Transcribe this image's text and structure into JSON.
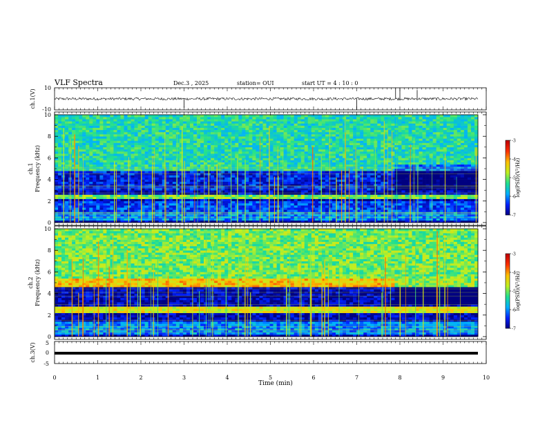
{
  "header": {
    "title": "VLF Spectra",
    "date": "Dec.3  , 2025",
    "station": "station= OUI",
    "start": "start  UT =  4 : 10 : 0"
  },
  "colorbar": {
    "label": "log(PSD)(V²/Hz)",
    "ticks": [
      "-3",
      "-4",
      "-5",
      "-6",
      "-7"
    ],
    "range": [
      -7,
      -3
    ],
    "colors": [
      "#000080",
      "#0020ff",
      "#00b0ff",
      "#20e090",
      "#c0f020",
      "#ffc000",
      "#ff3000",
      "#c00000",
      "#ffffff"
    ]
  },
  "chart_data": [
    {
      "type": "line",
      "title": "ch.1(V)",
      "ylabel": "ch.1(V)",
      "ylim": [
        -10,
        10
      ],
      "yticks": [
        "10",
        "-10"
      ],
      "xlim": [
        0,
        10
      ],
      "baseline": 0,
      "spikes": [
        {
          "x": 3.0,
          "y": -8
        },
        {
          "x": 7.0,
          "y": -10
        },
        {
          "x": 7.9,
          "y": 10
        },
        {
          "x": 8.0,
          "y": 10
        },
        {
          "x": 8.4,
          "y": 8
        }
      ]
    },
    {
      "type": "heatmap",
      "title": "ch.1 Frequency (kHz)",
      "ylabel_top": "ch.1",
      "ylabel": "Frequency  (kHz)",
      "ylim": [
        0,
        10
      ],
      "yticks": [
        "0",
        "2",
        "4",
        "6",
        "8",
        "10"
      ],
      "xlim": [
        0,
        10
      ],
      "bands_khz": [
        {
          "range": [
            0.2,
            1.0
          ],
          "level": -6.0
        },
        {
          "range": [
            1.0,
            2.0
          ],
          "level": -6.3
        },
        {
          "range": [
            2.2,
            2.6
          ],
          "level": -5.0
        },
        {
          "range": [
            3.0,
            4.8
          ],
          "level": -6.5
        },
        {
          "range": [
            4.8,
            10.0
          ],
          "level": -5.4
        }
      ],
      "transition_min": 7.8
    },
    {
      "type": "heatmap",
      "title": "ch.2 Frequency (kHz)",
      "ylabel_top": "ch.2",
      "ylabel": "Frequency  (kHz)",
      "ylim": [
        0,
        10
      ],
      "yticks": [
        "0",
        "2",
        "4",
        "6",
        "8",
        "10"
      ],
      "xlim": [
        0,
        10
      ],
      "bands_khz": [
        {
          "range": [
            0.2,
            1.5
          ],
          "level": -6.0
        },
        {
          "range": [
            2.2,
            2.8
          ],
          "level": -4.5
        },
        {
          "range": [
            4.6,
            5.4
          ],
          "level": -4.2
        },
        {
          "range": [
            5.4,
            10.0
          ],
          "level": -5.0
        }
      ],
      "transition_min": 7.8
    },
    {
      "type": "line",
      "title": "ch.3(V)",
      "ylabel": "ch.3(V)",
      "ylim": [
        -5,
        5
      ],
      "yticks": [
        "5",
        "0",
        "-5"
      ],
      "xlim": [
        0,
        10
      ],
      "baseline": 0
    }
  ],
  "xaxis": {
    "label": "Time  (min)",
    "ticks": [
      "0",
      "1",
      "2",
      "3",
      "4",
      "5",
      "6",
      "7",
      "8",
      "9",
      "10"
    ],
    "range": [
      0,
      10
    ]
  }
}
